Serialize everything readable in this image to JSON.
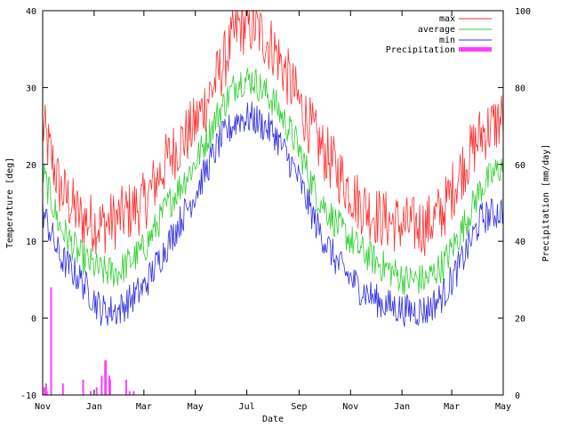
{
  "chart_data": {
    "type": "line",
    "xlabel": "Date",
    "ylabel": "Temperature [deg]",
    "y2label": "Precipitation [mm/day]",
    "ylim": [
      -10,
      40
    ],
    "y2lim": [
      0,
      100
    ],
    "yticks": [
      "-10",
      "0",
      "10",
      "20",
      "30",
      "40"
    ],
    "y2ticks": [
      "0",
      "20",
      "40",
      "60",
      "80",
      "100"
    ],
    "xticks": [
      "Nov",
      "Jan",
      "Mar",
      "May",
      "Jul",
      "Sep",
      "Nov",
      "Jan",
      "Mar",
      "May"
    ],
    "xrange_days": [
      0,
      900
    ],
    "xtick_days": [
      0,
      61,
      120,
      181,
      242,
      304,
      365,
      426,
      485,
      546
    ],
    "grid": false,
    "legend_position": "top-right",
    "series": [
      {
        "name": "max",
        "color": "#ff3030",
        "base": [
          [
            0,
            25
          ],
          [
            20,
            17
          ],
          [
            45,
            13
          ],
          [
            70,
            12
          ],
          [
            90,
            13
          ],
          [
            120,
            15
          ],
          [
            150,
            21
          ],
          [
            180,
            25
          ],
          [
            210,
            32
          ],
          [
            232,
            38
          ],
          [
            250,
            38
          ],
          [
            275,
            35
          ],
          [
            300,
            29
          ],
          [
            325,
            23
          ],
          [
            350,
            19
          ],
          [
            375,
            15
          ],
          [
            400,
            13
          ],
          [
            430,
            12
          ],
          [
            455,
            12
          ],
          [
            475,
            14
          ],
          [
            495,
            19
          ],
          [
            520,
            24
          ],
          [
            546,
            26
          ]
        ],
        "noise": 4.0
      },
      {
        "name": "average",
        "color": "#30d030",
        "base": [
          [
            0,
            19
          ],
          [
            20,
            12
          ],
          [
            45,
            8
          ],
          [
            70,
            6
          ],
          [
            90,
            6
          ],
          [
            120,
            9
          ],
          [
            150,
            15
          ],
          [
            180,
            20
          ],
          [
            210,
            27
          ],
          [
            232,
            31
          ],
          [
            250,
            31
          ],
          [
            275,
            28
          ],
          [
            300,
            23
          ],
          [
            325,
            16
          ],
          [
            350,
            12
          ],
          [
            375,
            9
          ],
          [
            400,
            7
          ],
          [
            430,
            5
          ],
          [
            455,
            5
          ],
          [
            475,
            7
          ],
          [
            495,
            11
          ],
          [
            520,
            17
          ],
          [
            546,
            20
          ]
        ],
        "noise": 2.2
      },
      {
        "name": "min",
        "color": "#3030e0",
        "base": [
          [
            0,
            14
          ],
          [
            20,
            8
          ],
          [
            45,
            5
          ],
          [
            70,
            1
          ],
          [
            90,
            1
          ],
          [
            120,
            4
          ],
          [
            150,
            10
          ],
          [
            180,
            16
          ],
          [
            210,
            23
          ],
          [
            232,
            26
          ],
          [
            250,
            26
          ],
          [
            275,
            24
          ],
          [
            300,
            19
          ],
          [
            325,
            12
          ],
          [
            350,
            7
          ],
          [
            375,
            4
          ],
          [
            400,
            2
          ],
          [
            430,
            1
          ],
          [
            455,
            1
          ],
          [
            475,
            3
          ],
          [
            495,
            7
          ],
          [
            520,
            13
          ],
          [
            546,
            14
          ]
        ],
        "noise": 2.2
      }
    ],
    "precip_series": {
      "name": "Precipitation",
      "color": "#ff40ff",
      "bars": [
        [
          2,
          2
        ],
        [
          4,
          3
        ],
        [
          5,
          1
        ],
        [
          10,
          28
        ],
        [
          24,
          3
        ],
        [
          48,
          4
        ],
        [
          57,
          1
        ],
        [
          64,
          2
        ],
        [
          70,
          5
        ],
        [
          74,
          9
        ],
        [
          75,
          9
        ],
        [
          79,
          5
        ],
        [
          80,
          4
        ],
        [
          99,
          4
        ],
        [
          103,
          1
        ],
        [
          108,
          1
        ]
      ]
    }
  }
}
